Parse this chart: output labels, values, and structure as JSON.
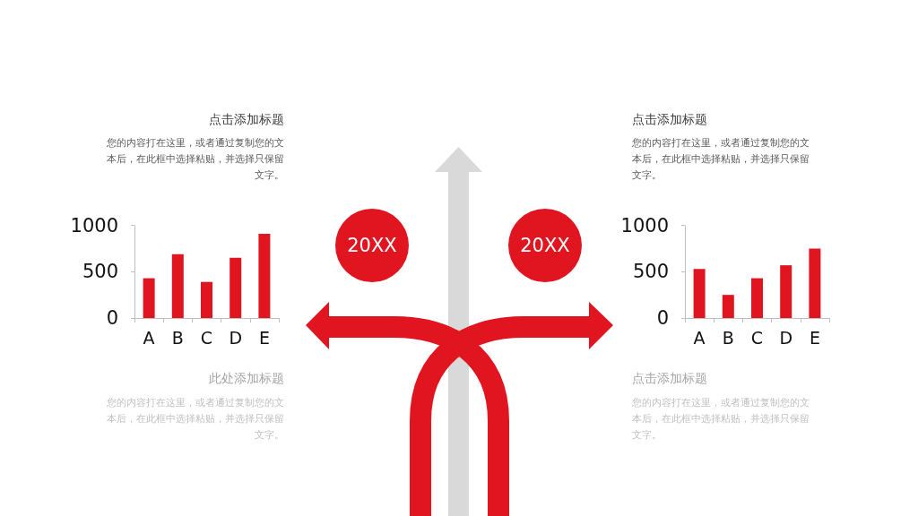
{
  "chart_data": [
    {
      "type": "bar",
      "title": "点击添加标题",
      "subtitle": "您的内容打在这里，或者通过复制您的文本后，在此框中选择粘贴，并选择只保留文字。",
      "categories": [
        "A",
        "B",
        "C",
        "D",
        "E"
      ],
      "values": [
        430,
        690,
        390,
        650,
        910
      ],
      "color": "#e0151f",
      "ylim": [
        0,
        1000
      ],
      "yticks": [
        0,
        500,
        1000
      ],
      "annotations": [
        "20XX",
        "此处添加标题",
        "您的内容打在这里，或者通过复制您的文本后，在此框中选择粘贴，并选择只保留文字。"
      ]
    },
    {
      "type": "bar",
      "title": "点击添加标题",
      "subtitle": "您的内容打在这里，或者通过复制您的文本后，在此框中选择粘贴，并选择只保留文字。",
      "categories": [
        "A",
        "B",
        "C",
        "D",
        "E"
      ],
      "values": [
        530,
        250,
        430,
        570,
        750
      ],
      "color": "#e0151f",
      "ylim": [
        0,
        1000
      ],
      "yticks": [
        0,
        500,
        1000
      ],
      "annotations": [
        "20XX",
        "点击添加标题",
        "您的内容打在这里，或者通过复制您的文本后，在此框中选择粘贴，并选择只保留文字。"
      ]
    }
  ]
}
